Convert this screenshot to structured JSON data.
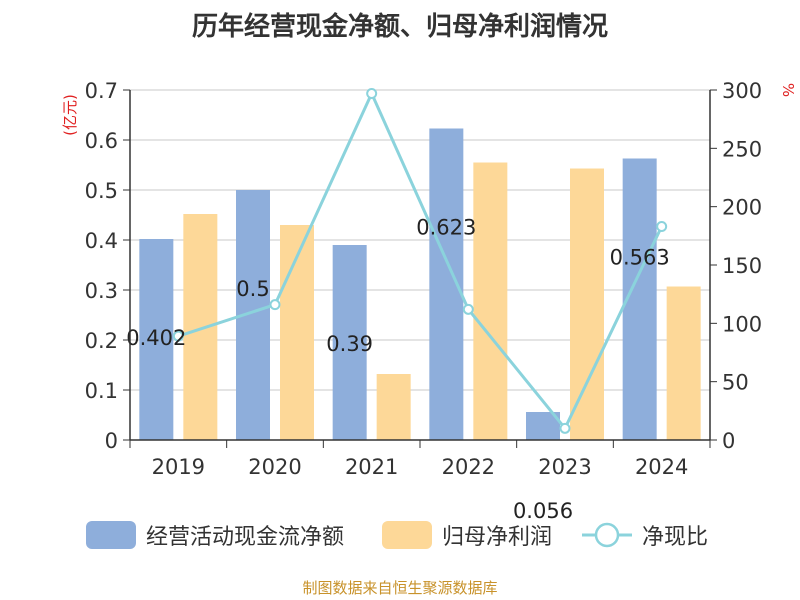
{
  "chart_data": {
    "type": "bar",
    "title": "历年经营现金净额、归母净利润情况",
    "categories": [
      "2019",
      "2020",
      "2021",
      "2022",
      "2023",
      "2024"
    ],
    "series": [
      {
        "name": "经营活动现金流净额",
        "kind": "bar",
        "axis": "left",
        "color": "#8eaedb",
        "values": [
          0.402,
          0.5,
          0.39,
          0.623,
          0.056,
          0.563
        ],
        "labels": [
          "0.402",
          "0.5",
          "0.39",
          "0.623",
          "0.056",
          "0.563"
        ]
      },
      {
        "name": "归母净利润",
        "kind": "bar",
        "axis": "left",
        "color": "#fdd898",
        "values": [
          0.452,
          0.43,
          0.132,
          0.555,
          0.543,
          0.307
        ]
      },
      {
        "name": "净现比",
        "kind": "line",
        "axis": "right",
        "color": "#8bd3dc",
        "values": [
          89,
          116,
          297,
          112,
          10,
          183
        ]
      }
    ],
    "y_left": {
      "label": "(亿元)",
      "ylim": [
        0,
        0.7
      ],
      "ticks": [
        "0",
        "0.1",
        "0.2",
        "0.3",
        "0.4",
        "0.5",
        "0.6",
        "0.7"
      ]
    },
    "y_right": {
      "label": "%",
      "ylim": [
        0,
        300
      ],
      "ticks": [
        "0",
        "50",
        "100",
        "150",
        "200",
        "250",
        "300"
      ]
    },
    "grid": true,
    "legend": "bottom"
  },
  "source_text": "制图数据来自恒生聚源数据库"
}
